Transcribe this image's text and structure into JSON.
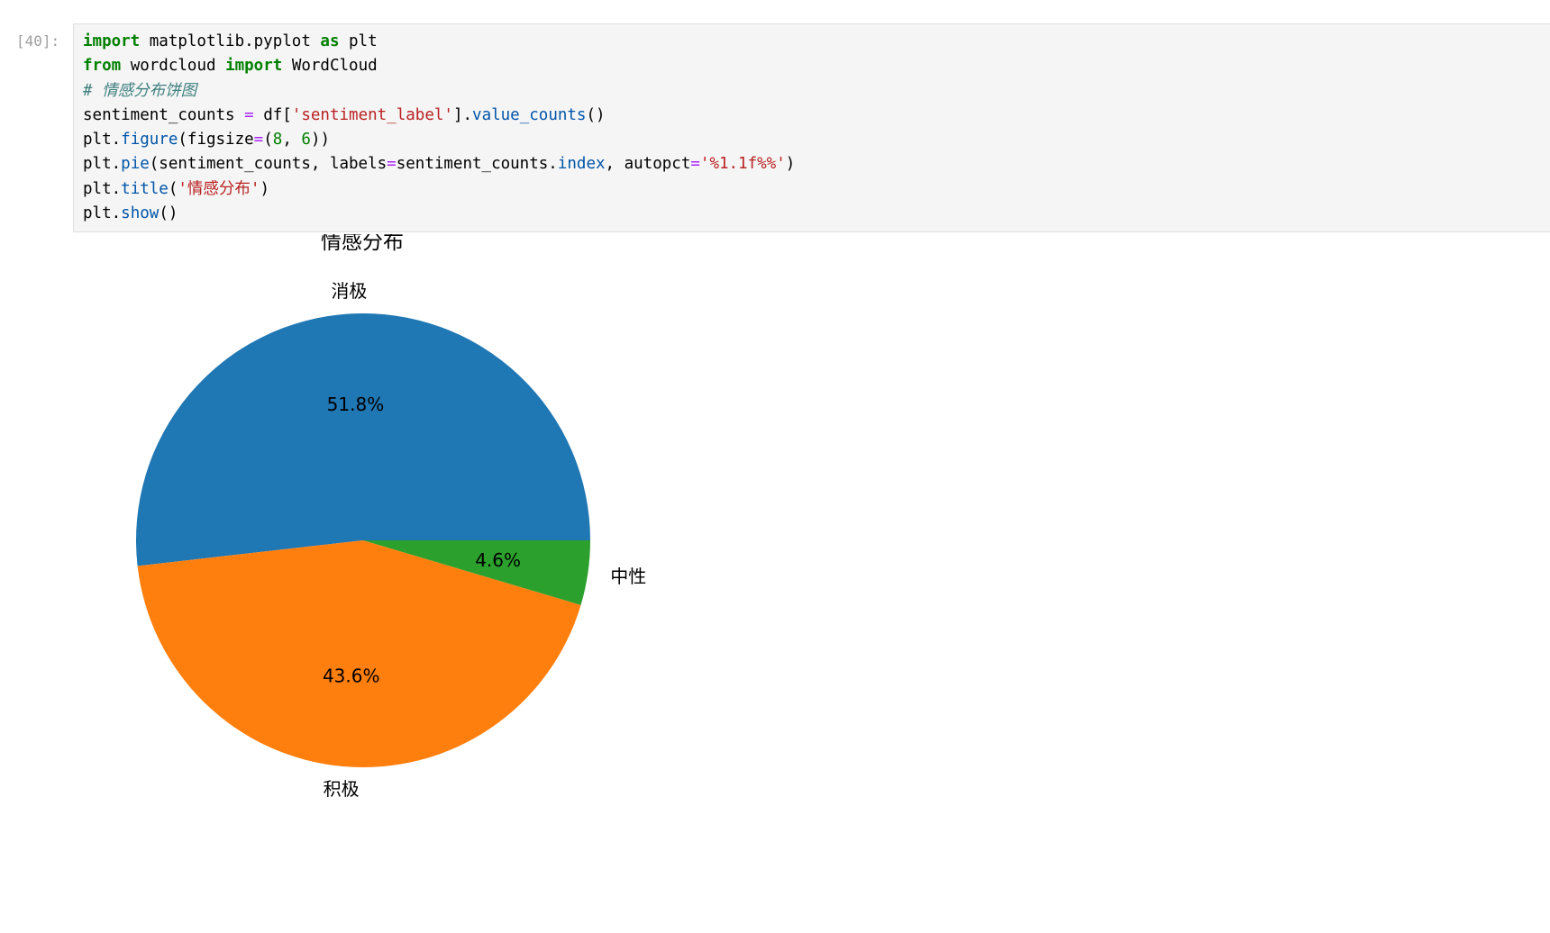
{
  "cell": {
    "prompt": "[40]:",
    "code_lines": [
      [
        {
          "t": "import",
          "c": "kw"
        },
        {
          "t": " matplotlib.pyplot "
        },
        {
          "t": "as",
          "c": "kw"
        },
        {
          "t": " plt"
        }
      ],
      [
        {
          "t": "from",
          "c": "kw"
        },
        {
          "t": " wordcloud "
        },
        {
          "t": "import",
          "c": "kw"
        },
        {
          "t": " WordCloud"
        }
      ],
      [
        {
          "t": "# 情感分布饼图",
          "c": "cm"
        }
      ],
      [
        {
          "t": "sentiment_counts "
        },
        {
          "t": "=",
          "c": "op"
        },
        {
          "t": " df["
        },
        {
          "t": "'sentiment_label'",
          "c": "st"
        },
        {
          "t": "]."
        },
        {
          "t": "value_counts",
          "c": "fn"
        },
        {
          "t": "()"
        }
      ],
      [
        {
          "t": "plt."
        },
        {
          "t": "figure",
          "c": "fn"
        },
        {
          "t": "(figsize"
        },
        {
          "t": "=",
          "c": "op"
        },
        {
          "t": "("
        },
        {
          "t": "8",
          "c": "nu"
        },
        {
          "t": ", "
        },
        {
          "t": "6",
          "c": "nu"
        },
        {
          "t": "))"
        }
      ],
      [
        {
          "t": "plt."
        },
        {
          "t": "pie",
          "c": "fn"
        },
        {
          "t": "(sentiment_counts, labels"
        },
        {
          "t": "=",
          "c": "op"
        },
        {
          "t": "sentiment_counts."
        },
        {
          "t": "index",
          "c": "fn"
        },
        {
          "t": ", autopct"
        },
        {
          "t": "=",
          "c": "op"
        },
        {
          "t": "'%1.1f%%'",
          "c": "st"
        },
        {
          "t": ")"
        }
      ],
      [
        {
          "t": "plt."
        },
        {
          "t": "title",
          "c": "fn"
        },
        {
          "t": "("
        },
        {
          "t": "'情感分布'",
          "c": "st"
        },
        {
          "t": ")"
        }
      ],
      [
        {
          "t": "plt."
        },
        {
          "t": "show",
          "c": "fn"
        },
        {
          "t": "()"
        }
      ]
    ]
  },
  "chart_data": {
    "type": "pie",
    "title": "情感分布",
    "labels": [
      "消极",
      "积极",
      "中性"
    ],
    "values": [
      51.8,
      43.6,
      4.6
    ],
    "pct_labels": [
      "51.8%",
      "43.6%",
      "4.6%"
    ],
    "colors": [
      "#1f77b4",
      "#ff7f0e",
      "#2ca02c"
    ],
    "startangle": 0,
    "direction": "counterclockwise"
  }
}
